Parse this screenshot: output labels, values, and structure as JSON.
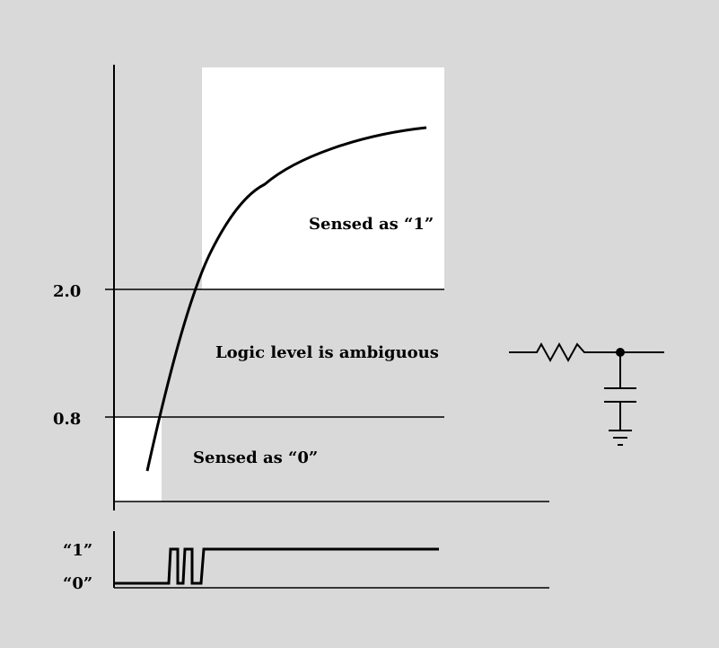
{
  "thresholds": {
    "high": "2.0",
    "low": "0.8"
  },
  "regions": {
    "one": "Sensed as “1”",
    "ambiguous": "Logic level is ambiguous",
    "zero": "Sensed as “0”"
  },
  "digital_axis": {
    "one_label": "“1”",
    "zero_label": "“0”"
  },
  "colors": {
    "background": "#d9d9d9",
    "highlight": "#ffffff",
    "line": "#000000"
  },
  "icons": {
    "rc_circuit": "rc-low-pass-filter-icon"
  }
}
